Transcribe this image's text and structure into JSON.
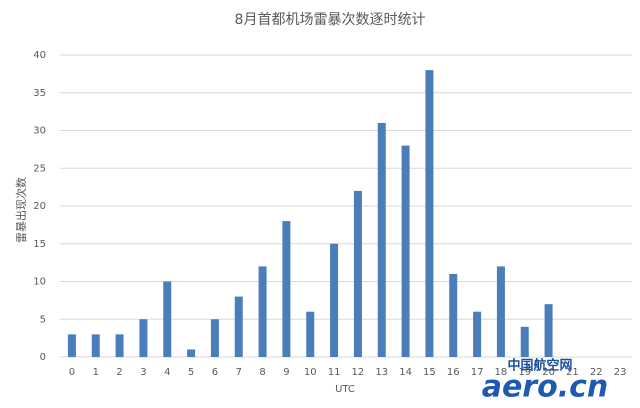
{
  "chart_data": {
    "type": "bar",
    "title": "8月首都机场雷暴次数逐时统计",
    "x_label": "UTC",
    "y_label": "雷暴出现次数",
    "categories": [
      "0",
      "1",
      "2",
      "3",
      "4",
      "5",
      "6",
      "7",
      "8",
      "9",
      "10",
      "11",
      "12",
      "13",
      "14",
      "15",
      "16",
      "17",
      "18",
      "19",
      "20",
      "21",
      "22",
      "23"
    ],
    "values": [
      3,
      3,
      3,
      5,
      10,
      1,
      5,
      8,
      12,
      18,
      6,
      15,
      22,
      31,
      28,
      38,
      11,
      6,
      12,
      4,
      7,
      0,
      0,
      0
    ],
    "color": "#4a7ebb",
    "ylim": [
      0,
      40
    ],
    "yticks": [
      0,
      5,
      10,
      15,
      20,
      25,
      30,
      35,
      40
    ],
    "grid": true
  },
  "watermark": {
    "text": "aero.cn",
    "subtext": "中国航空网"
  }
}
